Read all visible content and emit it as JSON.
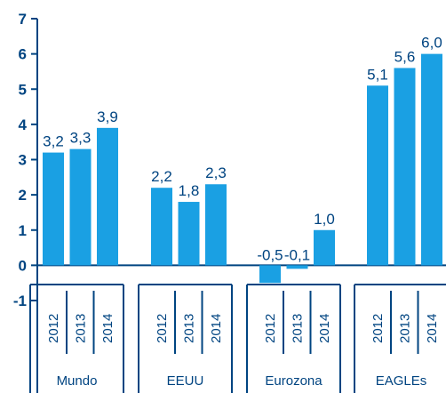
{
  "chart_data": {
    "type": "bar",
    "title": "",
    "xlabel": "",
    "ylabel": "",
    "ylim": [
      -1,
      7
    ],
    "yticks": [
      "-1",
      "0",
      "1",
      "2",
      "3",
      "4",
      "5",
      "6",
      "7"
    ],
    "grid": false,
    "legend": "none",
    "colors": {
      "bar": "#1aa0e3",
      "axis": "#004481",
      "text": "#004481"
    },
    "groups": [
      {
        "name": "Mundo",
        "years": [
          "2012",
          "2013",
          "2014"
        ],
        "values": [
          3.2,
          3.3,
          3.9
        ],
        "labels": [
          "3,2",
          "3,3",
          "3,9"
        ]
      },
      {
        "name": "EEUU",
        "years": [
          "2012",
          "2013",
          "2014"
        ],
        "values": [
          2.2,
          1.8,
          2.3
        ],
        "labels": [
          "2,2",
          "1,8",
          "2,3"
        ]
      },
      {
        "name": "Eurozona",
        "years": [
          "2012",
          "2013",
          "2014"
        ],
        "values": [
          -0.5,
          -0.1,
          1.0
        ],
        "labels": [
          "-0,5",
          "-0,1",
          "1,0"
        ]
      },
      {
        "name": "EAGLEs",
        "years": [
          "2012",
          "2013",
          "2014"
        ],
        "values": [
          5.1,
          5.6,
          6.0
        ],
        "labels": [
          "5,1",
          "5,6",
          "6,0"
        ]
      }
    ]
  }
}
